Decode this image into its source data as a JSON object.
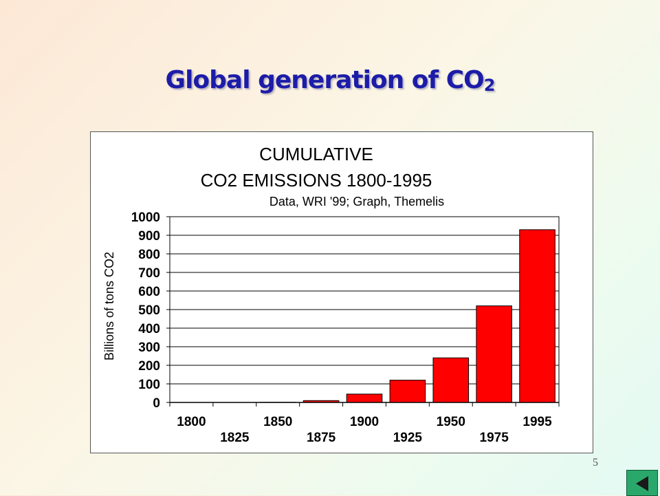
{
  "slide": {
    "title_main": "Global generation of CO",
    "title_sub": "2",
    "page_number": "5"
  },
  "nav": {
    "back_icon": "triangle-left-icon",
    "button_color": "#2aa86c"
  },
  "chart_data": {
    "type": "bar",
    "title_line1": "CUMULATIVE",
    "title_line2": "CO2 EMISSIONS 1800-1995",
    "subtitle": "Data, WRI '99; Graph, Themelis",
    "ylabel": "Billions of tons CO2",
    "xlabel": "",
    "categories": [
      "1800",
      "1825",
      "1850",
      "1875",
      "1900",
      "1925",
      "1950",
      "1975",
      "1995"
    ],
    "values": [
      0,
      0,
      1,
      10,
      45,
      120,
      240,
      520,
      930
    ],
    "ylim": [
      0,
      1000
    ],
    "yticks": [
      "0",
      "100",
      "200",
      "300",
      "400",
      "500",
      "600",
      "700",
      "800",
      "900",
      "1000"
    ],
    "grid": true,
    "legend": "none",
    "bar_color": "#ff0000"
  }
}
